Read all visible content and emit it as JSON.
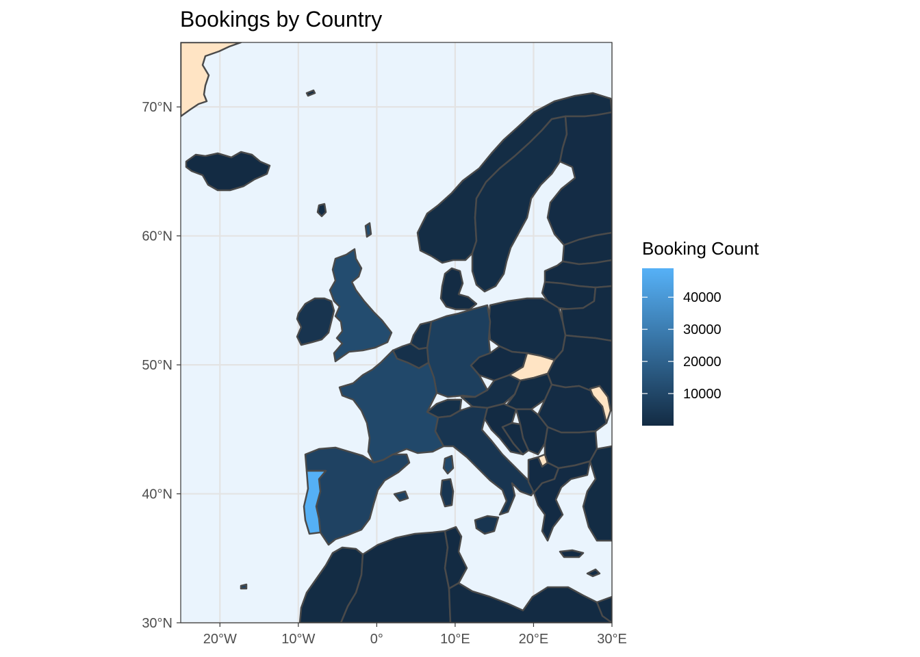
{
  "chart_data": {
    "type": "choropleth",
    "title": "Bookings by Country",
    "legend": {
      "title": "Booking Count",
      "breaks": [
        10000,
        20000,
        30000,
        40000
      ],
      "break_labels": [
        "10000",
        "20000",
        "30000",
        "40000"
      ],
      "range": [
        0,
        49000
      ],
      "colors": {
        "low": "#132B43",
        "high": "#56B1F7",
        "missing": "#FFE4C4"
      },
      "placement": "right"
    },
    "xlim": [
      -25,
      30
    ],
    "ylim": [
      30,
      75
    ],
    "x_ticks": [
      -20,
      -10,
      0,
      10,
      20,
      30
    ],
    "x_tick_labels": [
      "20°W",
      "10°W",
      "0°",
      "10°E",
      "20°E",
      "30°E"
    ],
    "y_ticks": [
      30,
      40,
      50,
      60,
      70
    ],
    "y_tick_labels": [
      "30°N",
      "40°N",
      "50°N",
      "60°N",
      "70°N"
    ],
    "panel_background": "#EAF4FD",
    "grid": true,
    "regions": [
      {
        "name": "Portugal",
        "value": 48500
      },
      {
        "name": "United Kingdom",
        "value": 12000
      },
      {
        "name": "France",
        "value": 10500
      },
      {
        "name": "Spain",
        "value": 8500
      },
      {
        "name": "Germany",
        "value": 7300
      },
      {
        "name": "Ireland",
        "value": 3400
      },
      {
        "name": "Italy",
        "value": 3800
      },
      {
        "name": "Belgium",
        "value": 2300
      },
      {
        "name": "Netherlands",
        "value": 2100
      },
      {
        "name": "Switzerland",
        "value": 1700
      },
      {
        "name": "Austria",
        "value": 1300
      },
      {
        "name": "Sweden",
        "value": 1000
      },
      {
        "name": "Poland",
        "value": 900
      },
      {
        "name": "Norway",
        "value": 600
      },
      {
        "name": "Denmark",
        "value": 400
      },
      {
        "name": "Finland",
        "value": 450
      },
      {
        "name": "Iceland",
        "value": 60
      },
      {
        "name": "Morocco",
        "value": 250
      },
      {
        "name": "Algeria",
        "value": 100
      },
      {
        "name": "Tunisia",
        "value": 50
      },
      {
        "name": "Libya",
        "value": 30
      },
      {
        "name": "Greece",
        "value": 150
      },
      {
        "name": "Czechia",
        "value": 170
      },
      {
        "name": "Hungary",
        "value": 230
      },
      {
        "name": "Romania",
        "value": 500
      },
      {
        "name": "Croatia",
        "value": 100
      },
      {
        "name": "Serbia",
        "value": 100
      },
      {
        "name": "Bulgaria",
        "value": 75
      },
      {
        "name": "Belarus",
        "value": 25
      },
      {
        "name": "Ukraine",
        "value": 70
      },
      {
        "name": "Lithuania",
        "value": 80
      },
      {
        "name": "Latvia",
        "value": 50
      },
      {
        "name": "Estonia",
        "value": 80
      },
      {
        "name": "Turkey",
        "value": 250
      },
      {
        "name": "Moldova",
        "value": null
      },
      {
        "name": "Kosovo",
        "value": null
      },
      {
        "name": "Greenland",
        "value": null
      }
    ]
  }
}
